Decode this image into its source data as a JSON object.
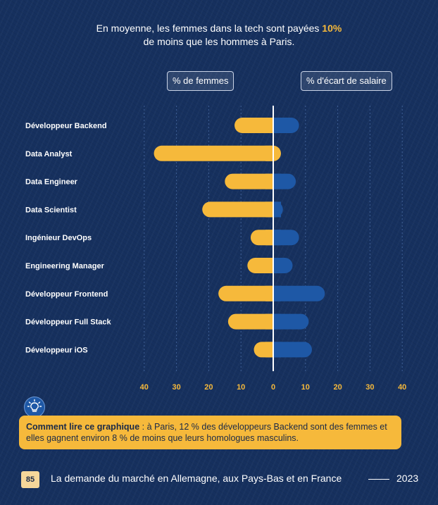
{
  "headline": {
    "line1_before": "En moyenne, les femmes dans la tech sont payées ",
    "line1_highlight": "10%",
    "line2": "de moins que les hommes à Paris."
  },
  "pills": {
    "left": "% de femmes",
    "right": "% d'écart de salaire"
  },
  "chart_data": {
    "type": "bar",
    "orientation": "horizontal-diverging",
    "categories": [
      "Développeur Backend",
      "Data Analyst",
      "Data Engineer",
      "Data Scientist",
      "Ingénieur DevOps",
      "Engineering Manager",
      "Développeur Frontend",
      "Développeur Full Stack",
      "Développeur iOS"
    ],
    "series": [
      {
        "name": "% de femmes",
        "values": [
          12,
          37,
          15,
          22,
          7,
          8,
          17,
          14,
          6
        ],
        "color": "#f6b93b"
      },
      {
        "name": "% d'écart de salaire",
        "values": [
          8,
          0,
          7,
          3,
          8,
          6,
          16,
          11,
          12
        ],
        "color": "#1e58a6"
      }
    ],
    "xticks": [
      "40",
      "30",
      "20",
      "10",
      "0",
      "10",
      "20",
      "30",
      "40"
    ],
    "xlim": [
      -40,
      40
    ],
    "grid": true
  },
  "note": {
    "bold": "Comment lire ce graphique",
    "text": " : à Paris, 12 % des développeurs Backend sont des femmes et elles gagnent environ 8 % de moins que leurs homologues masculins."
  },
  "footer": {
    "page_number": "85",
    "title": "La demande du marché en Allemagne, aux Pays-Bas et en France",
    "year": "2023"
  },
  "icons": {
    "bulb": "lightbulb-icon"
  },
  "colors": {
    "background": "#16305e",
    "accent": "#f6b93b",
    "blue": "#1e58a6"
  }
}
